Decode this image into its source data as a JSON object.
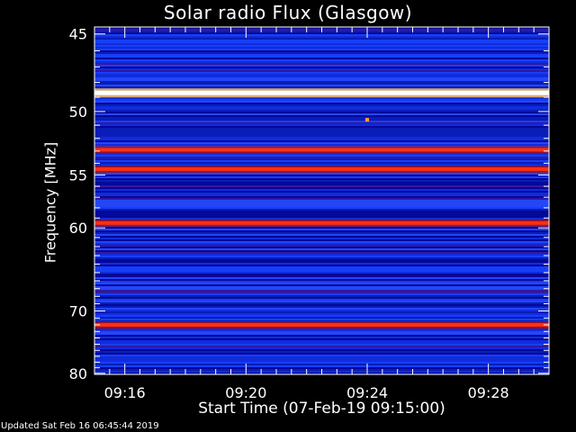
{
  "chart_data": {
    "type": "heatmap",
    "title": "Solar radio Flux (Glasgow)",
    "xlabel": "Start Time (07-Feb-19 09:15:00)",
    "ylabel": "Frequency [MHz]",
    "x_ticks": [
      "09:16",
      "09:20",
      "09:24",
      "09:28"
    ],
    "x_tick_minutes": [
      1,
      5,
      9,
      13
    ],
    "x_range_minutes": [
      0.0,
      15.0
    ],
    "y_ticks": [
      45,
      50,
      55,
      60,
      70,
      80
    ],
    "y_range_mhz": [
      44.6,
      80.2
    ],
    "y_scale": "reciprocal",
    "strong_bands": [
      {
        "freq_mhz": 48.7,
        "level": "saturated"
      },
      {
        "freq_mhz": 52.9,
        "level": "high"
      },
      {
        "freq_mhz": 54.5,
        "level": "high"
      },
      {
        "freq_mhz": 59.5,
        "level": "high"
      },
      {
        "freq_mhz": 72.0,
        "level": "high"
      }
    ],
    "spot": {
      "time_min": 9.0,
      "freq_mhz": 50.6
    }
  },
  "footer": "Updated Sat Feb 16 06:45:44 2019",
  "colors": {
    "background": "#000000",
    "axes": "#ffffff",
    "low": "#0a0a8c",
    "mid": "#1e3cff",
    "high": "#d01010",
    "peak": "#fff8c0"
  }
}
